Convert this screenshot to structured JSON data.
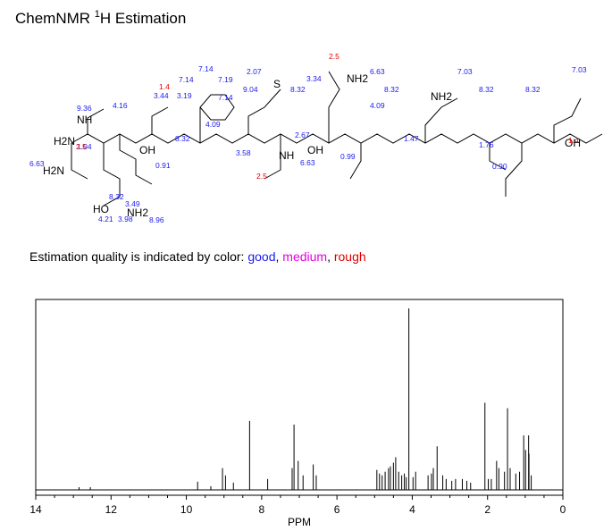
{
  "header": {
    "title_prefix": "ChemNMR ",
    "title_sup": "1",
    "title_suffix": "H Estimation"
  },
  "legend": {
    "prefix": "Estimation quality is indicated by color: ",
    "good": "good",
    "comma1": ", ",
    "medium": "medium",
    "comma2": ", ",
    "rough": "rough",
    "colors": {
      "good": "#1a1af0",
      "medium": "#e000e0",
      "rough": "#e00000"
    }
  },
  "structure": {
    "atoms": [
      "H2N",
      "H2N",
      "NH",
      "HO",
      "OH",
      "NH2",
      "S",
      "OH",
      "NH2",
      "NH2",
      "NH",
      "OH"
    ],
    "shift_labels_good": [
      "9.36",
      "6.63",
      "4.16",
      "3.44",
      "3.19",
      "7.14",
      "7.14",
      "7.19",
      "7.14",
      "2.07",
      "9.04",
      "8.32",
      "3.34",
      "6.63",
      "7.03",
      "8.32",
      "4.09",
      "8.32",
      "8.32",
      "7.03",
      "3.58",
      "0.99",
      "1.47",
      "0.90",
      "8.96",
      "4.21",
      "3.98",
      "8.32",
      "1.76",
      "4.09",
      "2.67",
      "6.63",
      "1.04",
      "0.91",
      "3.49",
      "8.32"
    ],
    "shift_labels_rough": [
      "2.5",
      "1.4",
      "2.5",
      "2.5",
      "1.4"
    ]
  },
  "chart_data": {
    "type": "line",
    "title": "",
    "xlabel": "PPM",
    "ylabel": "",
    "xlim": [
      14,
      0
    ],
    "x_ticks": [
      14,
      12,
      10,
      8,
      6,
      4,
      2,
      0
    ],
    "ylim": [
      0,
      1
    ],
    "grid": false,
    "peaks": [
      {
        "x": 12.85,
        "y": 0.015
      },
      {
        "x": 12.55,
        "y": 0.015
      },
      {
        "x": 9.7,
        "y": 0.045
      },
      {
        "x": 9.35,
        "y": 0.02
      },
      {
        "x": 9.04,
        "y": 0.12
      },
      {
        "x": 8.96,
        "y": 0.08
      },
      {
        "x": 8.75,
        "y": 0.04
      },
      {
        "x": 8.32,
        "y": 0.38
      },
      {
        "x": 7.84,
        "y": 0.06
      },
      {
        "x": 7.19,
        "y": 0.12
      },
      {
        "x": 7.14,
        "y": 0.36
      },
      {
        "x": 7.03,
        "y": 0.16
      },
      {
        "x": 6.9,
        "y": 0.08
      },
      {
        "x": 6.63,
        "y": 0.14
      },
      {
        "x": 6.55,
        "y": 0.08
      },
      {
        "x": 4.94,
        "y": 0.11
      },
      {
        "x": 4.87,
        "y": 0.09
      },
      {
        "x": 4.8,
        "y": 0.08
      },
      {
        "x": 4.72,
        "y": 0.1
      },
      {
        "x": 4.63,
        "y": 0.12
      },
      {
        "x": 4.58,
        "y": 0.13
      },
      {
        "x": 4.5,
        "y": 0.15
      },
      {
        "x": 4.44,
        "y": 0.18
      },
      {
        "x": 4.36,
        "y": 0.1
      },
      {
        "x": 4.28,
        "y": 0.08
      },
      {
        "x": 4.21,
        "y": 0.09
      },
      {
        "x": 4.16,
        "y": 0.07
      },
      {
        "x": 4.09,
        "y": 1.0
      },
      {
        "x": 3.98,
        "y": 0.07
      },
      {
        "x": 3.91,
        "y": 0.1
      },
      {
        "x": 3.58,
        "y": 0.08
      },
      {
        "x": 3.49,
        "y": 0.09
      },
      {
        "x": 3.44,
        "y": 0.12
      },
      {
        "x": 3.34,
        "y": 0.24
      },
      {
        "x": 3.19,
        "y": 0.08
      },
      {
        "x": 3.1,
        "y": 0.06
      },
      {
        "x": 2.95,
        "y": 0.05
      },
      {
        "x": 2.85,
        "y": 0.06
      },
      {
        "x": 2.67,
        "y": 0.06
      },
      {
        "x": 2.55,
        "y": 0.05
      },
      {
        "x": 2.45,
        "y": 0.04
      },
      {
        "x": 2.07,
        "y": 0.48
      },
      {
        "x": 1.98,
        "y": 0.06
      },
      {
        "x": 1.9,
        "y": 0.06
      },
      {
        "x": 1.76,
        "y": 0.16
      },
      {
        "x": 1.7,
        "y": 0.12
      },
      {
        "x": 1.55,
        "y": 0.1
      },
      {
        "x": 1.47,
        "y": 0.45
      },
      {
        "x": 1.4,
        "y": 0.12
      },
      {
        "x": 1.25,
        "y": 0.09
      },
      {
        "x": 1.15,
        "y": 0.1
      },
      {
        "x": 1.04,
        "y": 0.3
      },
      {
        "x": 0.99,
        "y": 0.22
      },
      {
        "x": 0.91,
        "y": 0.3
      },
      {
        "x": 0.9,
        "y": 0.2
      },
      {
        "x": 0.84,
        "y": 0.08
      }
    ]
  }
}
